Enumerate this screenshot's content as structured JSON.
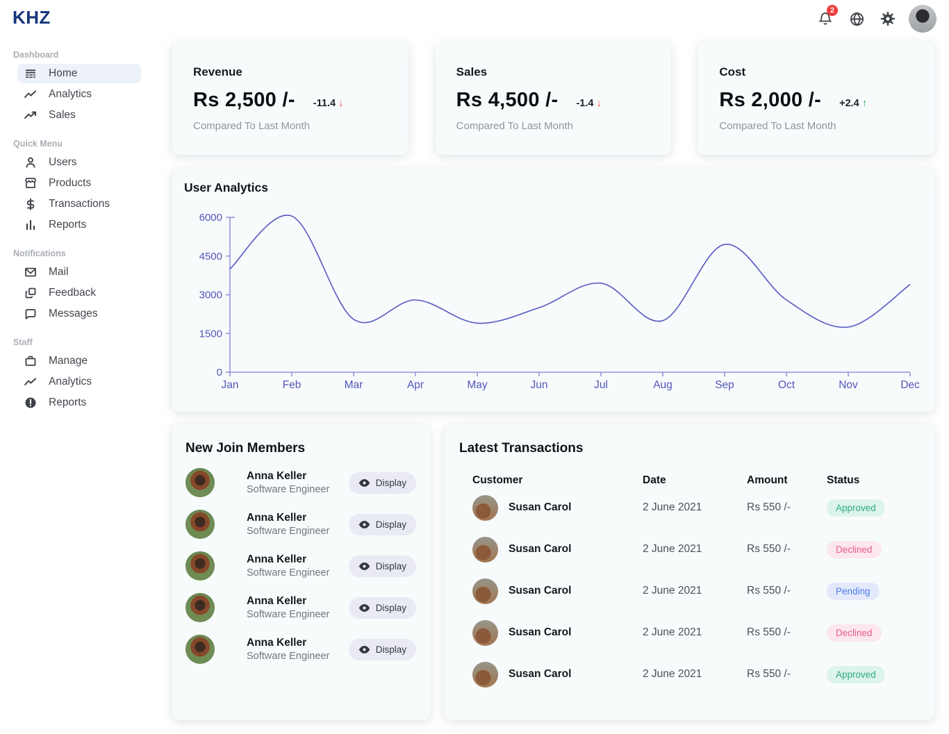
{
  "brand": "KHZ",
  "header": {
    "notification_count": "2"
  },
  "sidebar": {
    "sections": [
      {
        "label": "Dashboard",
        "items": [
          {
            "label": "Home"
          },
          {
            "label": "Analytics"
          },
          {
            "label": "Sales"
          }
        ]
      },
      {
        "label": "Quick Menu",
        "items": [
          {
            "label": "Users"
          },
          {
            "label": "Products"
          },
          {
            "label": "Transactions"
          },
          {
            "label": "Reports"
          }
        ]
      },
      {
        "label": "Notifications",
        "items": [
          {
            "label": "Mail"
          },
          {
            "label": "Feedback"
          },
          {
            "label": "Messages"
          }
        ]
      },
      {
        "label": "Staff",
        "items": [
          {
            "label": "Manage"
          },
          {
            "label": "Analytics"
          },
          {
            "label": "Reports"
          }
        ]
      }
    ]
  },
  "stats": [
    {
      "title": "Revenue",
      "value": "Rs 2,500 /-",
      "delta": "-11.4",
      "direction": "down",
      "note": "Compared To Last Month"
    },
    {
      "title": "Sales",
      "value": "Rs 4,500 /-",
      "delta": "-1.4",
      "direction": "down",
      "note": "Compared To Last Month"
    },
    {
      "title": "Cost",
      "value": "Rs 2,000 /-",
      "delta": "+2.4",
      "direction": "up",
      "note": "Compared To Last Month"
    }
  ],
  "chart_data": {
    "type": "line",
    "title": "User Analytics",
    "categories": [
      "Jan",
      "Feb",
      "Mar",
      "Apr",
      "May",
      "Jun",
      "Jul",
      "Aug",
      "Sep",
      "Oct",
      "Nov",
      "Dec"
    ],
    "values": [
      4000,
      6050,
      2050,
      2800,
      1900,
      2500,
      3450,
      2000,
      4950,
      2800,
      1750,
      3400
    ],
    "xlabel": "",
    "ylabel": "",
    "ylim": [
      0,
      6000
    ],
    "yticks": [
      0,
      1500,
      3000,
      4500,
      6000
    ],
    "grid": false,
    "legend": false,
    "line_color": "#5d61c4",
    "axis_color": "#9196dd",
    "label_color": "#5356b8"
  },
  "members": {
    "title": "New Join Members",
    "button_label": "Display",
    "rows": [
      {
        "name": "Anna Keller",
        "role": "Software Engineer"
      },
      {
        "name": "Anna Keller",
        "role": "Software Engineer"
      },
      {
        "name": "Anna Keller",
        "role": "Software Engineer"
      },
      {
        "name": "Anna Keller",
        "role": "Software Engineer"
      },
      {
        "name": "Anna Keller",
        "role": "Software Engineer"
      }
    ]
  },
  "transactions": {
    "title": "Latest Transactions",
    "columns": [
      "Customer",
      "Date",
      "Amount",
      "Status"
    ],
    "rows": [
      {
        "customer": "Susan Carol",
        "date": "2 June 2021",
        "amount": "Rs 550 /-",
        "status": "Approved",
        "status_class": "approved"
      },
      {
        "customer": "Susan Carol",
        "date": "2 June 2021",
        "amount": "Rs 550 /-",
        "status": "Declined",
        "status_class": "declined"
      },
      {
        "customer": "Susan Carol",
        "date": "2 June 2021",
        "amount": "Rs 550 /-",
        "status": "Pending",
        "status_class": "pending"
      },
      {
        "customer": "Susan Carol",
        "date": "2 June 2021",
        "amount": "Rs 550 /-",
        "status": "Declined",
        "status_class": "declined"
      },
      {
        "customer": "Susan Carol",
        "date": "2 June 2021",
        "amount": "Rs 550 /-",
        "status": "Approved",
        "status_class": "approved"
      }
    ]
  }
}
